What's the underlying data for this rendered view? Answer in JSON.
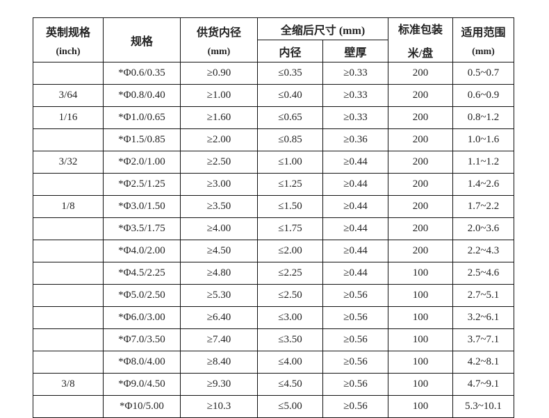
{
  "header": {
    "inch_label": "英制规格",
    "inch_unit": "(inch)",
    "spec": "规格",
    "supply_id": "供货内径",
    "supply_unit": "(mm)",
    "shrunk": "全缩后尺寸 (mm)",
    "shrunk_id": "内径",
    "shrunk_wall": "壁厚",
    "pack": "标准包装",
    "pack_unit": "米/盘",
    "range": "适用范围",
    "range_unit": "(mm)"
  },
  "rows": [
    [
      "",
      "*Φ0.6/0.35",
      "≥0.90",
      "≤0.35",
      "≥0.33",
      "200",
      "0.5~0.7"
    ],
    [
      "3/64",
      "*Φ0.8/0.40",
      "≥1.00",
      "≤0.40",
      "≥0.33",
      "200",
      "0.6~0.9"
    ],
    [
      "1/16",
      "*Φ1.0/0.65",
      "≥1.60",
      "≤0.65",
      "≥0.33",
      "200",
      "0.8~1.2"
    ],
    [
      "",
      "*Φ1.5/0.85",
      "≥2.00",
      "≤0.85",
      "≥0.36",
      "200",
      "1.0~1.6"
    ],
    [
      "3/32",
      "*Φ2.0/1.00",
      "≥2.50",
      "≤1.00",
      "≥0.44",
      "200",
      "1.1~1.2"
    ],
    [
      "",
      "*Φ2.5/1.25",
      "≥3.00",
      "≤1.25",
      "≥0.44",
      "200",
      "1.4~2.6"
    ],
    [
      "1/8",
      "*Φ3.0/1.50",
      "≥3.50",
      "≤1.50",
      "≥0.44",
      "200",
      "1.7~2.2"
    ],
    [
      "",
      "*Φ3.5/1.75",
      "≥4.00",
      "≤1.75",
      "≥0.44",
      "200",
      "2.0~3.6"
    ],
    [
      "",
      "*Φ4.0/2.00",
      "≥4.50",
      "≤2.00",
      "≥0.44",
      "200",
      "2.2~4.3"
    ],
    [
      "",
      "*Φ4.5/2.25",
      "≥4.80",
      "≤2.25",
      "≥0.44",
      "100",
      "2.5~4.6"
    ],
    [
      "",
      "*Φ5.0/2.50",
      "≥5.30",
      "≤2.50",
      "≥0.56",
      "100",
      "2.7~5.1"
    ],
    [
      "",
      "*Φ6.0/3.00",
      "≥6.40",
      "≤3.00",
      "≥0.56",
      "100",
      "3.2~6.1"
    ],
    [
      "",
      "*Φ7.0/3.50",
      "≥7.40",
      "≤3.50",
      "≥0.56",
      "100",
      "3.7~7.1"
    ],
    [
      "",
      "*Φ8.0/4.00",
      "≥8.40",
      "≤4.00",
      "≥0.56",
      "100",
      "4.2~8.1"
    ],
    [
      "3/8",
      "*Φ9.0/4.50",
      "≥9.30",
      "≤4.50",
      "≥0.56",
      "100",
      "4.7~9.1"
    ],
    [
      "",
      "*Φ10/5.00",
      "≥10.3",
      "≤5.00",
      "≥0.56",
      "100",
      "5.3~10.1"
    ]
  ]
}
